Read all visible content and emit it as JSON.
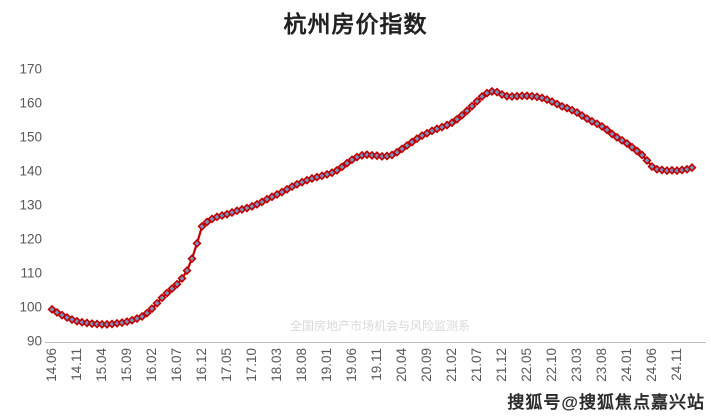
{
  "page": {
    "background": "#ffffff"
  },
  "chart_data": {
    "type": "line",
    "title": "杭州房价指数",
    "xlabel": "",
    "ylabel": "",
    "ylim": [
      90,
      170
    ],
    "y_tick_step": 10,
    "grid": false,
    "legend": "none",
    "line_color": "#c00000",
    "marker_shape": "diamond",
    "marker_fill": "#7398c8",
    "marker_stroke": "#c00000",
    "axis_color": "#bfbfbf",
    "label_color": "#595959",
    "tick_every": 5,
    "x_tick_labels": [
      "14.06",
      "14.11",
      "15.04",
      "15.09",
      "16.02",
      "16.07",
      "16.12",
      "17.05",
      "17.10",
      "18.03",
      "18.08",
      "19.01",
      "19.06",
      "19.11",
      "20.04",
      "20.09",
      "21.02",
      "21.07",
      "21.12",
      "22.05",
      "22.10",
      "23.03",
      "23.08",
      "24.01",
      "24.06",
      "24.11"
    ],
    "series": [
      {
        "name": "杭州房价指数",
        "x": [
          "14.06",
          "14.07",
          "14.08",
          "14.09",
          "14.10",
          "14.11",
          "14.12",
          "15.01",
          "15.02",
          "15.03",
          "15.04",
          "15.05",
          "15.06",
          "15.07",
          "15.08",
          "15.09",
          "15.10",
          "15.11",
          "15.12",
          "16.01",
          "16.02",
          "16.03",
          "16.04",
          "16.05",
          "16.06",
          "16.07",
          "16.08",
          "16.09",
          "16.10",
          "16.11",
          "16.12",
          "17.01",
          "17.02",
          "17.03",
          "17.04",
          "17.05",
          "17.06",
          "17.07",
          "17.08",
          "17.09",
          "17.10",
          "17.11",
          "17.12",
          "18.01",
          "18.02",
          "18.03",
          "18.04",
          "18.05",
          "18.06",
          "18.07",
          "18.08",
          "18.09",
          "18.10",
          "18.11",
          "18.12",
          "19.01",
          "19.02",
          "19.03",
          "19.04",
          "19.05",
          "19.06",
          "19.07",
          "19.08",
          "19.09",
          "19.10",
          "19.11",
          "19.12",
          "20.01",
          "20.02",
          "20.03",
          "20.04",
          "20.05",
          "20.06",
          "20.07",
          "20.08",
          "20.09",
          "20.10",
          "20.11",
          "20.12",
          "21.01",
          "21.02",
          "21.03",
          "21.04",
          "21.05",
          "21.06",
          "21.07",
          "21.08",
          "21.09",
          "21.10",
          "21.11",
          "21.12",
          "22.01",
          "22.02",
          "22.03",
          "22.04",
          "22.05",
          "22.06",
          "22.07",
          "22.08",
          "22.09",
          "22.10",
          "22.11",
          "22.12",
          "23.01",
          "23.02",
          "23.03",
          "23.04",
          "23.05",
          "23.06",
          "23.07",
          "23.08",
          "23.09",
          "23.10",
          "23.11",
          "23.12",
          "24.01",
          "24.02",
          "24.03",
          "24.04",
          "24.05",
          "24.06",
          "24.07",
          "24.08",
          "24.09",
          "24.10",
          "24.11",
          "24.12",
          "25.01",
          "25.02"
        ],
        "values": [
          99.6,
          98.7,
          97.9,
          97.2,
          96.6,
          96.1,
          95.8,
          95.6,
          95.4,
          95.3,
          95.2,
          95.2,
          95.3,
          95.5,
          95.7,
          96.0,
          96.4,
          96.9,
          97.5,
          98.5,
          99.8,
          101.4,
          103.0,
          104.4,
          105.7,
          107.0,
          108.7,
          111.0,
          114.5,
          119.0,
          124.0,
          125.3,
          126.2,
          126.8,
          127.2,
          127.6,
          128.1,
          128.6,
          129.0,
          129.4,
          129.9,
          130.5,
          131.2,
          132.0,
          132.7,
          133.4,
          134.1,
          134.9,
          135.7,
          136.4,
          137.0,
          137.6,
          138.1,
          138.5,
          138.9,
          139.3,
          139.8,
          140.5,
          141.5,
          142.6,
          143.6,
          144.4,
          144.9,
          145.1,
          144.9,
          144.8,
          144.6,
          144.7,
          145.0,
          145.8,
          146.8,
          147.8,
          148.8,
          149.8,
          150.7,
          151.4,
          152.1,
          152.7,
          153.2,
          153.8,
          154.5,
          155.5,
          156.7,
          158.0,
          159.4,
          160.8,
          162.2,
          163.2,
          163.7,
          163.5,
          162.8,
          162.3,
          162.2,
          162.3,
          162.4,
          162.4,
          162.3,
          162.1,
          161.8,
          161.3,
          160.7,
          160.0,
          159.3,
          158.8,
          158.2,
          157.5,
          156.6,
          155.7,
          154.9,
          154.2,
          153.4,
          152.4,
          151.2,
          150.2,
          149.3,
          148.4,
          147.3,
          146.2,
          145.0,
          143.4,
          141.6,
          140.8,
          140.6,
          140.4,
          140.5,
          140.4,
          140.6,
          140.8,
          141.3
        ]
      }
    ],
    "watermark_center": "全国房地产市场机会与风险监测系",
    "watermark_bottom_right": "搜狐号@搜狐焦点嘉兴站"
  }
}
